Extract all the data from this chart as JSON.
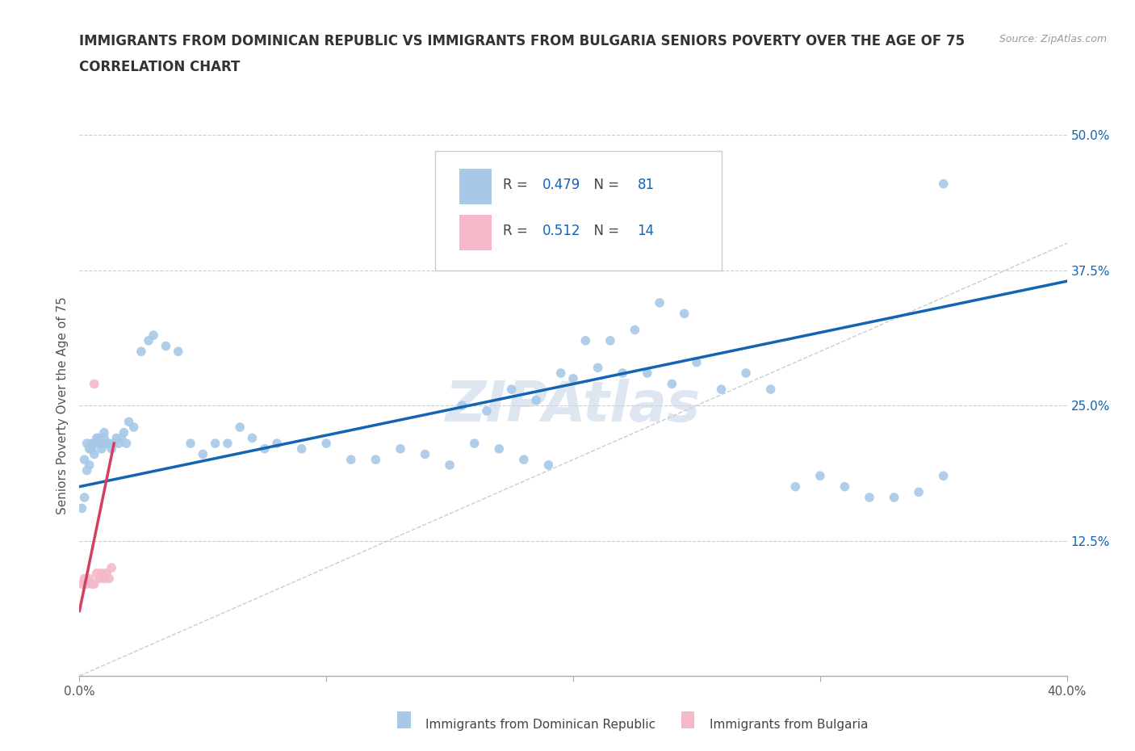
{
  "title_line1": "IMMIGRANTS FROM DOMINICAN REPUBLIC VS IMMIGRANTS FROM BULGARIA SENIORS POVERTY OVER THE AGE OF 75",
  "title_line2": "CORRELATION CHART",
  "source_text": "Source: ZipAtlas.com",
  "ylabel": "Seniors Poverty Over the Age of 75",
  "legend_label1": "Immigrants from Dominican Republic",
  "legend_label2": "Immigrants from Bulgaria",
  "R1": 0.479,
  "N1": 81,
  "R2": 0.512,
  "N2": 14,
  "color1": "#a8c8e8",
  "color2": "#f4b8c8",
  "line_color1": "#1464b4",
  "line_color2": "#d44060",
  "xlim": [
    0.0,
    0.4
  ],
  "ylim": [
    0.0,
    0.5
  ],
  "xticks": [
    0.0,
    0.1,
    0.2,
    0.3,
    0.4
  ],
  "yticks": [
    0.0,
    0.125,
    0.25,
    0.375,
    0.5
  ],
  "xtick_labels": [
    "0.0%",
    "",
    "",
    "",
    "40.0%"
  ],
  "ytick_labels": [
    "",
    "12.5%",
    "25.0%",
    "37.5%",
    "50.0%"
  ],
  "watermark": "ZIPAtlas",
  "background_color": "#ffffff",
  "scatter1_x": [
    0.001,
    0.002,
    0.002,
    0.003,
    0.003,
    0.004,
    0.004,
    0.005,
    0.005,
    0.006,
    0.006,
    0.007,
    0.007,
    0.008,
    0.008,
    0.009,
    0.009,
    0.01,
    0.01,
    0.011,
    0.012,
    0.013,
    0.014,
    0.015,
    0.016,
    0.017,
    0.018,
    0.019,
    0.02,
    0.022,
    0.025,
    0.028,
    0.03,
    0.035,
    0.04,
    0.045,
    0.05,
    0.055,
    0.06,
    0.065,
    0.07,
    0.075,
    0.08,
    0.09,
    0.1,
    0.11,
    0.12,
    0.13,
    0.14,
    0.15,
    0.16,
    0.17,
    0.18,
    0.19,
    0.2,
    0.21,
    0.22,
    0.23,
    0.24,
    0.25,
    0.26,
    0.27,
    0.28,
    0.29,
    0.3,
    0.31,
    0.32,
    0.33,
    0.34,
    0.35,
    0.155,
    0.165,
    0.175,
    0.185,
    0.195,
    0.205,
    0.215,
    0.225,
    0.235,
    0.245,
    0.35
  ],
  "scatter1_y": [
    0.155,
    0.2,
    0.165,
    0.215,
    0.19,
    0.21,
    0.195,
    0.215,
    0.21,
    0.215,
    0.205,
    0.215,
    0.22,
    0.215,
    0.22,
    0.215,
    0.21,
    0.22,
    0.225,
    0.215,
    0.215,
    0.21,
    0.215,
    0.22,
    0.215,
    0.22,
    0.225,
    0.215,
    0.235,
    0.23,
    0.3,
    0.31,
    0.315,
    0.305,
    0.3,
    0.215,
    0.205,
    0.215,
    0.215,
    0.23,
    0.22,
    0.21,
    0.215,
    0.21,
    0.215,
    0.2,
    0.2,
    0.21,
    0.205,
    0.195,
    0.215,
    0.21,
    0.2,
    0.195,
    0.275,
    0.285,
    0.28,
    0.28,
    0.27,
    0.29,
    0.265,
    0.28,
    0.265,
    0.175,
    0.185,
    0.175,
    0.165,
    0.165,
    0.17,
    0.185,
    0.25,
    0.245,
    0.265,
    0.255,
    0.28,
    0.31,
    0.31,
    0.32,
    0.345,
    0.335,
    0.455
  ],
  "scatter2_x": [
    0.001,
    0.002,
    0.003,
    0.004,
    0.005,
    0.006,
    0.006,
    0.007,
    0.008,
    0.009,
    0.01,
    0.011,
    0.012,
    0.013
  ],
  "scatter2_y": [
    0.085,
    0.09,
    0.085,
    0.09,
    0.085,
    0.085,
    0.27,
    0.095,
    0.09,
    0.095,
    0.09,
    0.095,
    0.09,
    0.1
  ],
  "reg_line1_x": [
    0.0,
    0.4
  ],
  "reg_line1_y": [
    0.175,
    0.365
  ],
  "reg_line2_x": [
    0.0,
    0.014
  ],
  "reg_line2_y": [
    0.06,
    0.215
  ]
}
